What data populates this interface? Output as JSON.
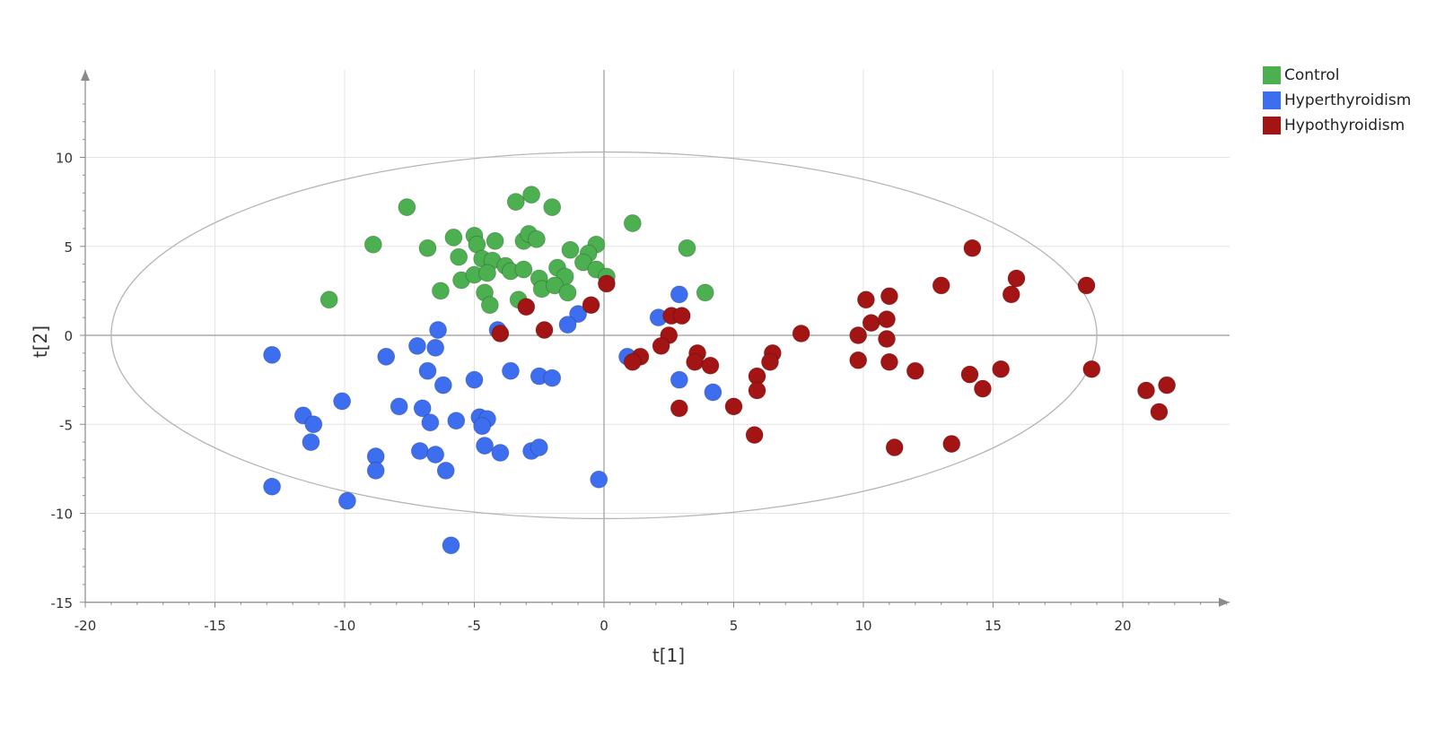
{
  "chart_data": {
    "type": "scatter",
    "title": "",
    "xlabel": "t[1]",
    "ylabel": "t[2]",
    "xlim": [
      -20,
      24
    ],
    "ylim": [
      -15,
      15
    ],
    "x_ticks": [
      -20,
      -15,
      -10,
      -5,
      0,
      5,
      10,
      15,
      20
    ],
    "y_ticks": [
      -15,
      -10,
      -5,
      0,
      5,
      10
    ],
    "x_tick_labels": [
      "-20",
      "-15",
      "-10",
      "-5",
      "0",
      "5",
      "10",
      "15",
      "20"
    ],
    "y_tick_labels": [
      "-15",
      "-10",
      "-5",
      "0",
      "5",
      "10"
    ],
    "grid": true,
    "legend_position": "top-right",
    "ellipse": {
      "center_x": 0,
      "center_y": 0,
      "semi_axis_x": 19.0,
      "semi_axis_y": 10.3
    },
    "series": [
      {
        "name": "Control",
        "color": "#4caf50",
        "points": [
          [
            -7.6,
            7.2
          ],
          [
            -2.8,
            7.9
          ],
          [
            -3.4,
            7.5
          ],
          [
            -2.0,
            7.2
          ],
          [
            1.1,
            6.3
          ],
          [
            -8.9,
            5.1
          ],
          [
            -6.8,
            4.9
          ],
          [
            -5.8,
            5.5
          ],
          [
            -5.0,
            5.6
          ],
          [
            -4.9,
            5.1
          ],
          [
            -4.2,
            5.3
          ],
          [
            -3.1,
            5.3
          ],
          [
            -2.9,
            5.7
          ],
          [
            -2.6,
            5.4
          ],
          [
            -1.3,
            4.8
          ],
          [
            -0.3,
            5.1
          ],
          [
            -0.6,
            4.6
          ],
          [
            3.2,
            4.9
          ],
          [
            -5.6,
            4.4
          ],
          [
            -4.7,
            4.3
          ],
          [
            -4.3,
            4.2
          ],
          [
            -3.8,
            3.9
          ],
          [
            -3.6,
            3.6
          ],
          [
            -3.1,
            3.7
          ],
          [
            -2.5,
            3.2
          ],
          [
            -1.8,
            3.8
          ],
          [
            -1.5,
            3.3
          ],
          [
            -0.8,
            4.1
          ],
          [
            -0.3,
            3.7
          ],
          [
            0.1,
            3.3
          ],
          [
            -5.5,
            3.1
          ],
          [
            -5.0,
            3.4
          ],
          [
            -4.5,
            3.5
          ],
          [
            -4.6,
            2.4
          ],
          [
            -6.3,
            2.5
          ],
          [
            -2.4,
            2.6
          ],
          [
            -1.9,
            2.8
          ],
          [
            -1.4,
            2.4
          ],
          [
            -3.3,
            2.0
          ],
          [
            -4.4,
            1.7
          ],
          [
            -10.6,
            2.0
          ],
          [
            3.9,
            2.4
          ]
        ]
      },
      {
        "name": "Hyperthyroidism",
        "color": "#3d6ef0",
        "points": [
          [
            -6.4,
            0.3
          ],
          [
            -4.1,
            0.3
          ],
          [
            -1.0,
            1.2
          ],
          [
            -1.4,
            0.6
          ],
          [
            2.1,
            1.0
          ],
          [
            2.9,
            2.3
          ],
          [
            -12.8,
            -1.1
          ],
          [
            -8.4,
            -1.2
          ],
          [
            -7.2,
            -0.6
          ],
          [
            -6.5,
            -0.7
          ],
          [
            -6.8,
            -2.0
          ],
          [
            -6.2,
            -2.8
          ],
          [
            -5.0,
            -2.5
          ],
          [
            -3.6,
            -2.0
          ],
          [
            -2.5,
            -2.3
          ],
          [
            -2.0,
            -2.4
          ],
          [
            0.9,
            -1.2
          ],
          [
            2.9,
            -2.5
          ],
          [
            4.2,
            -3.2
          ],
          [
            -10.1,
            -3.7
          ],
          [
            -7.9,
            -4.0
          ],
          [
            -7.0,
            -4.1
          ],
          [
            -6.7,
            -4.9
          ],
          [
            -5.7,
            -4.8
          ],
          [
            -4.8,
            -4.6
          ],
          [
            -4.5,
            -4.7
          ],
          [
            -4.7,
            -5.1
          ],
          [
            -11.6,
            -4.5
          ],
          [
            -11.2,
            -5.0
          ],
          [
            -11.3,
            -6.0
          ],
          [
            -8.8,
            -6.8
          ],
          [
            -8.8,
            -7.6
          ],
          [
            -7.1,
            -6.5
          ],
          [
            -6.5,
            -6.7
          ],
          [
            -6.1,
            -7.6
          ],
          [
            -4.6,
            -6.2
          ],
          [
            -4.0,
            -6.6
          ],
          [
            -2.8,
            -6.5
          ],
          [
            -2.5,
            -6.3
          ],
          [
            -12.8,
            -8.5
          ],
          [
            -9.9,
            -9.3
          ],
          [
            -0.2,
            -8.1
          ],
          [
            -5.9,
            -11.8
          ]
        ]
      },
      {
        "name": "Hypothyroidism",
        "color": "#a31414",
        "points": [
          [
            14.2,
            4.9
          ],
          [
            15.9,
            3.2
          ],
          [
            15.7,
            2.3
          ],
          [
            18.6,
            2.8
          ],
          [
            13.0,
            2.8
          ],
          [
            10.1,
            2.0
          ],
          [
            11.0,
            2.2
          ],
          [
            0.1,
            2.9
          ],
          [
            -0.5,
            1.7
          ],
          [
            -3.0,
            1.6
          ],
          [
            2.6,
            1.1
          ],
          [
            3.0,
            1.1
          ],
          [
            10.3,
            0.7
          ],
          [
            10.9,
            0.9
          ],
          [
            7.6,
            0.1
          ],
          [
            9.8,
            0.0
          ],
          [
            10.9,
            -0.2
          ],
          [
            -4.0,
            0.1
          ],
          [
            -2.3,
            0.3
          ],
          [
            2.5,
            0.0
          ],
          [
            2.2,
            -0.6
          ],
          [
            1.4,
            -1.2
          ],
          [
            1.1,
            -1.5
          ],
          [
            3.6,
            -1.0
          ],
          [
            3.5,
            -1.5
          ],
          [
            4.1,
            -1.7
          ],
          [
            6.5,
            -1.0
          ],
          [
            6.4,
            -1.5
          ],
          [
            9.8,
            -1.4
          ],
          [
            11.0,
            -1.5
          ],
          [
            12.0,
            -2.0
          ],
          [
            14.1,
            -2.2
          ],
          [
            15.3,
            -1.9
          ],
          [
            18.8,
            -1.9
          ],
          [
            5.9,
            -2.3
          ],
          [
            5.9,
            -3.1
          ],
          [
            14.6,
            -3.0
          ],
          [
            2.9,
            -4.1
          ],
          [
            5.0,
            -4.0
          ],
          [
            5.8,
            -5.6
          ],
          [
            11.2,
            -6.3
          ],
          [
            13.4,
            -6.1
          ],
          [
            20.9,
            -3.1
          ],
          [
            21.7,
            -2.8
          ],
          [
            21.4,
            -4.3
          ]
        ]
      }
    ]
  }
}
